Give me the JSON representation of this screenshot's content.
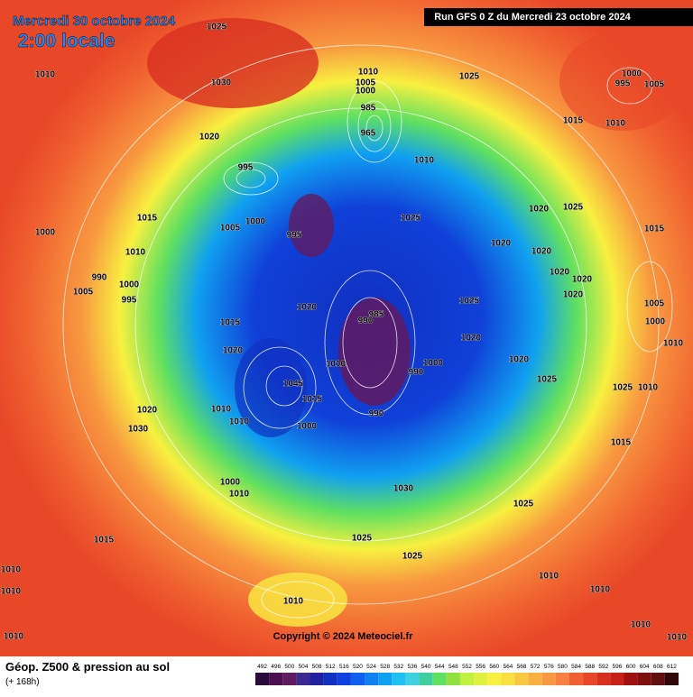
{
  "header": {
    "date": "Mercredi 30 octobre 2024",
    "time": "2:00 locale",
    "run": "Run GFS 0 Z du Mercredi 23 octobre 2024"
  },
  "copyright": "Copyright © 2024 Meteociel.fr",
  "footer": {
    "title": "Géop. Z500 & pression au sol",
    "forecast": "(+ 168h)"
  },
  "legend": {
    "labels": [
      "492",
      "496",
      "500",
      "504",
      "508",
      "512",
      "516",
      "520",
      "524",
      "528",
      "532",
      "536",
      "540",
      "544",
      "548",
      "552",
      "556",
      "560",
      "564",
      "568",
      "572",
      "576",
      "580",
      "584",
      "588",
      "592",
      "596",
      "600",
      "604",
      "608",
      "612"
    ],
    "colors": [
      "#2a0a3a",
      "#4a1050",
      "#601a60",
      "#3a2a90",
      "#2020a0",
      "#1030c0",
      "#1040e0",
      "#1060f0",
      "#1080f0",
      "#10a0f0",
      "#20c0f0",
      "#40d0e0",
      "#40d0a0",
      "#60e060",
      "#90e040",
      "#c0f040",
      "#e0f040",
      "#f8f040",
      "#f8e040",
      "#f8c840",
      "#f8b040",
      "#f89840",
      "#f88040",
      "#f06030",
      "#e84828",
      "#d83020",
      "#c82018",
      "#a01010",
      "#801010",
      "#601010",
      "#300808"
    ]
  },
  "pressure_labels": [
    "1025",
    "1010",
    "1030",
    "1010",
    "1005",
    "1000",
    "985",
    "965",
    "1025",
    "1000",
    "995",
    "1005",
    "1015",
    "1010",
    "1020",
    "1010",
    "995",
    "1025",
    "1015",
    "1020",
    "1025",
    "1000",
    "1005",
    "1000",
    "995",
    "1020",
    "1015",
    "1010",
    "1020",
    "1020",
    "1020",
    "990",
    "1005",
    "1000",
    "995",
    "1020",
    "1025",
    "1020",
    "1005",
    "1015",
    "990",
    "985",
    "1000",
    "1020",
    "1020",
    "1010",
    "1010",
    "1000",
    "990",
    "1020",
    "1025",
    "1015",
    "1045",
    "1010",
    "1025",
    "1010",
    "990",
    "1010",
    "1000",
    "1015",
    "1020",
    "1030",
    "1000",
    "1010",
    "1030",
    "1025",
    "1015",
    "1025",
    "1025",
    "1010",
    "1010",
    "1010",
    "1010",
    "1010",
    "1010",
    "1010",
    "1010"
  ]
}
